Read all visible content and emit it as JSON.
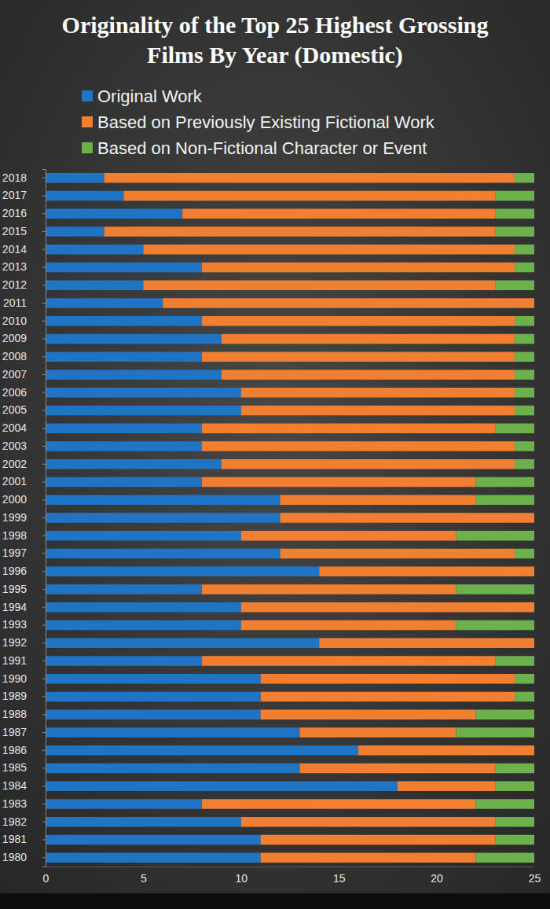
{
  "chart_data": {
    "type": "bar",
    "orientation": "horizontal",
    "stacked": true,
    "grid": false,
    "legend": "top",
    "title": [
      "Originality of the Top 25 Highest Grossing",
      "Films By Year (Domestic)"
    ],
    "categories": [
      "2018",
      "2017",
      "2016",
      "2015",
      "2014",
      "2013",
      "2012",
      "2011",
      "2010",
      "2009",
      "2008",
      "2007",
      "2006",
      "2005",
      "2004",
      "2003",
      "2002",
      "2001",
      "2000",
      "1999",
      "1998",
      "1997",
      "1996",
      "1995",
      "1994",
      "1993",
      "1992",
      "1991",
      "1990",
      "1989",
      "1988",
      "1987",
      "1986",
      "1985",
      "1984",
      "1983",
      "1982",
      "1981",
      "1980"
    ],
    "xlim": [
      0,
      25
    ],
    "xticks": [
      0,
      5,
      10,
      15,
      20,
      25
    ],
    "series": [
      {
        "name": "Original Work",
        "color": "#1f74c4",
        "values": [
          3,
          4,
          7,
          3,
          5,
          8,
          5,
          6,
          8,
          9,
          8,
          9,
          10,
          10,
          8,
          8,
          9,
          8,
          12,
          12,
          10,
          12,
          14,
          8,
          10,
          10,
          14,
          8,
          11,
          11,
          11,
          13,
          16,
          13,
          18,
          8,
          10,
          11,
          11
        ]
      },
      {
        "name": "Based on Previously Existing Fictional Work",
        "color": "#f07f32",
        "values": [
          21,
          19,
          16,
          20,
          19,
          16,
          18,
          19,
          16,
          15,
          16,
          15,
          14,
          14,
          15,
          16,
          15,
          14,
          10,
          13,
          11,
          12,
          11,
          13,
          15,
          11,
          11,
          15,
          13,
          13,
          11,
          8,
          9,
          10,
          5,
          14,
          13,
          12,
          11
        ]
      },
      {
        "name": "Based on Non-Fictional Character or Event",
        "color": "#6cb14c",
        "values": [
          1,
          2,
          2,
          2,
          1,
          1,
          2,
          0,
          1,
          1,
          1,
          1,
          1,
          1,
          2,
          1,
          1,
          3,
          3,
          0,
          4,
          1,
          0,
          4,
          0,
          4,
          0,
          2,
          1,
          1,
          3,
          4,
          0,
          2,
          2,
          3,
          2,
          2,
          3
        ]
      }
    ]
  }
}
